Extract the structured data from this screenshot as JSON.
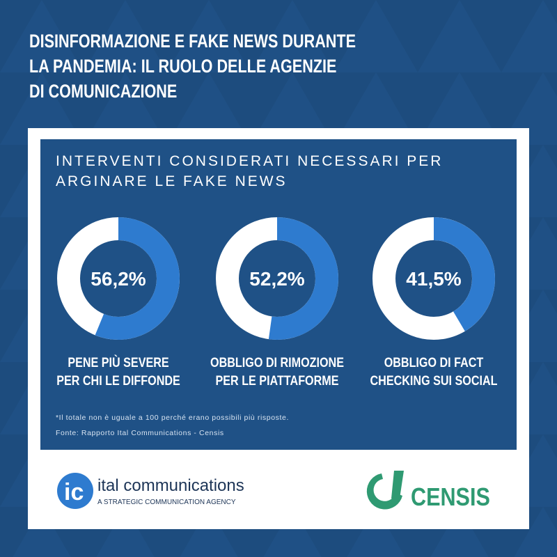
{
  "header": {
    "title": "DISINFORMAZIONE E FAKE NEWS DURANTE\nLA PANDEMIA: IL RUOLO DELLE AGENZIE\nDI COMUNICAZIONE"
  },
  "chart_data": {
    "type": "donut",
    "title": "INTERVENTI CONSIDERATI NECESSARI PER\nARGINARE LE FAKE NEWS",
    "categories": [
      "PENE PIÙ SEVERE\nPER CHI LE DIFFONDE",
      "OBBLIGO DI RIMOZIONE\nPER LE PIATTAFORME",
      "OBBLIGO DI FACT\nCHECKING SUI SOCIAL"
    ],
    "values": [
      56.2,
      52.2,
      41.5
    ],
    "value_labels": [
      "56,2%",
      "52,2%",
      "41,5%"
    ],
    "color": "#2e7bcf"
  },
  "footnote": "*Il totale non è uguale a 100 perché erano possibili più risposte.",
  "source": "Fonte: Rapporto Ital Communications - Censis",
  "logos": {
    "ital": "ital communications",
    "ital_tagline": "A STRATEGIC COMMUNICATION AGENCY",
    "censis": "CENSIS"
  }
}
